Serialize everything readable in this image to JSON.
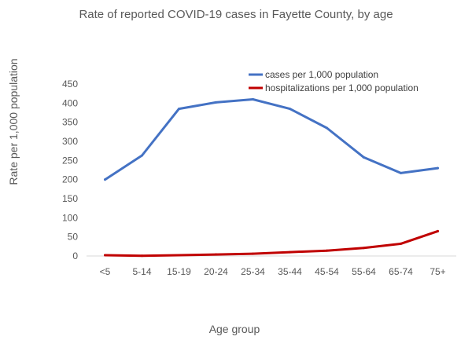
{
  "chart_data": {
    "type": "line",
    "title": "Rate of reported COVID-19 cases in Fayette County, by age",
    "xlabel": "Age group",
    "ylabel": "Rate per 1,000 population",
    "ylim": [
      0,
      450
    ],
    "ytick_step": 50,
    "grid": false,
    "legend_position": "top-right",
    "categories": [
      "<5",
      "5-14",
      "15-19",
      "20-24",
      "25-34",
      "35-44",
      "45-54",
      "55-64",
      "65-74",
      "75+"
    ],
    "series": [
      {
        "name": "cases per 1,000 population",
        "color": "#4472C4",
        "values": [
          200,
          263,
          385,
          402,
          410,
          385,
          335,
          258,
          217,
          230
        ]
      },
      {
        "name": "hospitalizations per 1,000 population",
        "color": "#C00000",
        "values": [
          2,
          0.5,
          2,
          4,
          6,
          10,
          14,
          21,
          32,
          65
        ]
      }
    ]
  }
}
